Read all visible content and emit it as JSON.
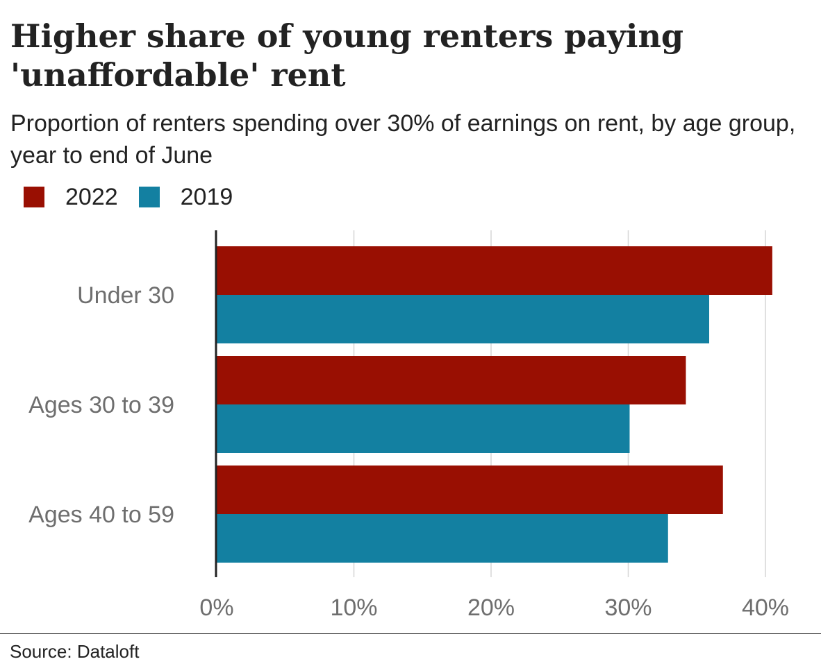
{
  "chart_data": {
    "type": "bar",
    "orientation": "horizontal",
    "title": "Higher share of young renters paying 'unaffordable' rent",
    "subtitle": "Proportion of renters spending over 30% of earnings on rent, by age group, year to end of June",
    "categories": [
      "Under 30",
      "Ages 30 to 39",
      "Ages 40 to 59"
    ],
    "series": [
      {
        "name": "2022",
        "color": "#990f02",
        "values": [
          40.5,
          34.2,
          36.9
        ]
      },
      {
        "name": "2019",
        "color": "#1380a1",
        "values": [
          35.9,
          30.1,
          32.9
        ]
      }
    ],
    "xlim": [
      0,
      42
    ],
    "xticks": [
      0,
      10,
      20,
      30,
      40
    ],
    "xtick_labels": [
      "0%",
      "10%",
      "20%",
      "30%",
      "40%"
    ],
    "grid": true,
    "legend_position": "top-left",
    "source": "Source: Dataloft"
  }
}
